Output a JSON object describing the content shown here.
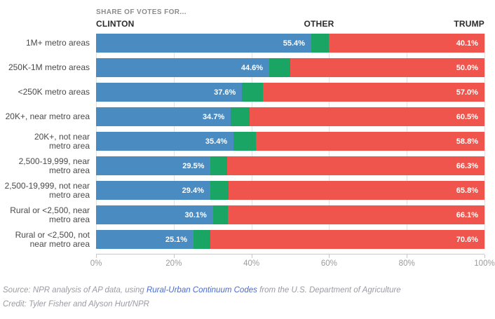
{
  "header": {
    "kicker": "SHARE OF VOTES FOR..."
  },
  "chart_data": {
    "type": "bar",
    "stacked": true,
    "orientation": "horizontal",
    "title": "SHARE OF VOTES FOR...",
    "legend": [
      {
        "label": "CLINTON",
        "color": "#4a8bc2"
      },
      {
        "label": "OTHER",
        "color": "#1aa564"
      },
      {
        "label": "TRUMP",
        "color": "#f0554d"
      }
    ],
    "categories": [
      "1M+ metro areas",
      "250K-1M metro areas",
      "<250K metro areas",
      "20K+, near metro area",
      "20K+, not near\nmetro area",
      "2,500-19,999, near\nmetro area",
      "2,500-19,999, not near\nmetro area",
      "Rural or <2,500, near\nmetro area",
      "Rural or <2,500, not\nnear metro area"
    ],
    "series": [
      {
        "name": "Clinton",
        "color": "#4a8bc2",
        "show_value_labels": true,
        "values": [
          55.4,
          44.6,
          37.6,
          34.7,
          35.4,
          29.5,
          29.4,
          30.1,
          25.1
        ]
      },
      {
        "name": "Other",
        "color": "#1aa564",
        "show_value_labels": false,
        "values": [
          4.5,
          5.4,
          5.4,
          4.8,
          5.8,
          4.2,
          4.8,
          3.8,
          4.3
        ]
      },
      {
        "name": "Trump",
        "color": "#f0554d",
        "show_value_labels": true,
        "values": [
          40.1,
          50.0,
          57.0,
          60.5,
          58.8,
          66.3,
          65.8,
          66.1,
          70.6
        ]
      }
    ],
    "xlim": [
      0,
      100
    ],
    "x_ticks": [
      "0%",
      "20%",
      "40%",
      "60%",
      "80%",
      "100%"
    ],
    "grid": true,
    "legend_position": "top"
  },
  "footer": {
    "source_prefix": "Source: NPR analysis of AP data, using ",
    "source_link": "Rural-Urban Continuum Codes",
    "source_suffix": " from the U.S. Department of Agriculture",
    "credit": "Credit: Tyler Fisher and Alyson Hurt/NPR"
  }
}
